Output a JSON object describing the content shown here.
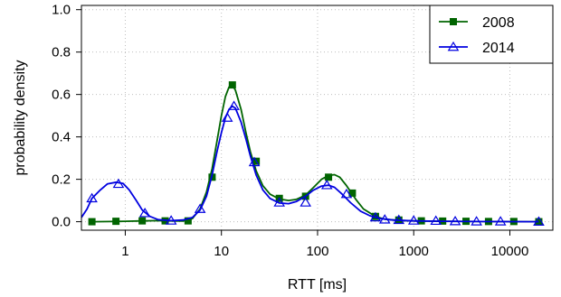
{
  "chart_data": {
    "type": "line",
    "xscale": "log",
    "xlabel": "RTT [ms]",
    "ylabel": "probability density",
    "xlim": [
      0.35,
      28000
    ],
    "ylim": [
      -0.04,
      1.02
    ],
    "grid": true,
    "legend_position": "top-right",
    "x_ticks": [
      1,
      10,
      100,
      1000,
      10000
    ],
    "x_tick_labels": [
      "1",
      "10",
      "100",
      "1000",
      "10000"
    ],
    "y_ticks": [
      0.0,
      0.2,
      0.4,
      0.6,
      0.8,
      1.0
    ],
    "y_tick_labels": [
      "0.0",
      "0.2",
      "0.4",
      "0.6",
      "0.8",
      "1.0"
    ],
    "series": [
      {
        "name": "2008",
        "color": "#006400",
        "marker": "square",
        "curve": [
          [
            0.45,
            0.0
          ],
          [
            0.7,
            0.001
          ],
          [
            1.0,
            0.002
          ],
          [
            1.5,
            0.004
          ],
          [
            2.2,
            0.005
          ],
          [
            3.0,
            0.004
          ],
          [
            4.0,
            0.003
          ],
          [
            5.0,
            0.015
          ],
          [
            6.0,
            0.06
          ],
          [
            7.0,
            0.14
          ],
          [
            8.0,
            0.25
          ],
          [
            9.0,
            0.38
          ],
          [
            10.0,
            0.5
          ],
          [
            11.0,
            0.59
          ],
          [
            12.0,
            0.635
          ],
          [
            13.0,
            0.645
          ],
          [
            14.0,
            0.62
          ],
          [
            16.0,
            0.53
          ],
          [
            18.0,
            0.42
          ],
          [
            20.0,
            0.33
          ],
          [
            23.0,
            0.24
          ],
          [
            27.0,
            0.17
          ],
          [
            32.0,
            0.13
          ],
          [
            40.0,
            0.107
          ],
          [
            50.0,
            0.1
          ],
          [
            60.0,
            0.105
          ],
          [
            75.0,
            0.125
          ],
          [
            90.0,
            0.16
          ],
          [
            110.0,
            0.2
          ],
          [
            130.0,
            0.218
          ],
          [
            150.0,
            0.222
          ],
          [
            170.0,
            0.21
          ],
          [
            200.0,
            0.17
          ],
          [
            250.0,
            0.105
          ],
          [
            300.0,
            0.06
          ],
          [
            400.0,
            0.025
          ],
          [
            500.0,
            0.012
          ],
          [
            700.0,
            0.006
          ],
          [
            1000.0,
            0.004
          ],
          [
            2000.0,
            0.002
          ],
          [
            5000.0,
            0.001
          ],
          [
            20000.0,
            0.0
          ]
        ],
        "markers": [
          [
            0.45,
            0.0
          ],
          [
            0.8,
            0.002
          ],
          [
            1.5,
            0.004
          ],
          [
            2.6,
            0.004
          ],
          [
            4.5,
            0.004
          ],
          [
            8.0,
            0.21
          ],
          [
            13.0,
            0.645
          ],
          [
            23.0,
            0.285
          ],
          [
            40.0,
            0.11
          ],
          [
            75.0,
            0.12
          ],
          [
            130.0,
            0.21
          ],
          [
            230.0,
            0.135
          ],
          [
            400.0,
            0.025
          ],
          [
            700.0,
            0.008
          ],
          [
            1200.0,
            0.004
          ],
          [
            2000.0,
            0.003
          ],
          [
            3500.0,
            0.002
          ],
          [
            6000.0,
            0.001
          ],
          [
            11000.0,
            0.001
          ],
          [
            20000.0,
            0.0
          ]
        ]
      },
      {
        "name": "2014",
        "color": "#0000e0",
        "marker": "triangle-open",
        "curve": [
          [
            0.35,
            0.02
          ],
          [
            0.4,
            0.06
          ],
          [
            0.45,
            0.11
          ],
          [
            0.55,
            0.15
          ],
          [
            0.65,
            0.178
          ],
          [
            0.8,
            0.186
          ],
          [
            0.95,
            0.18
          ],
          [
            1.1,
            0.15
          ],
          [
            1.3,
            0.1
          ],
          [
            1.5,
            0.055
          ],
          [
            1.8,
            0.025
          ],
          [
            2.2,
            0.01
          ],
          [
            3.0,
            0.005
          ],
          [
            4.0,
            0.008
          ],
          [
            5.0,
            0.02
          ],
          [
            6.0,
            0.055
          ],
          [
            7.0,
            0.12
          ],
          [
            8.0,
            0.22
          ],
          [
            9.0,
            0.33
          ],
          [
            10.0,
            0.42
          ],
          [
            11.0,
            0.49
          ],
          [
            12.0,
            0.53
          ],
          [
            13.0,
            0.545
          ],
          [
            14.0,
            0.535
          ],
          [
            16.0,
            0.47
          ],
          [
            18.0,
            0.39
          ],
          [
            20.0,
            0.31
          ],
          [
            23.0,
            0.22
          ],
          [
            27.0,
            0.15
          ],
          [
            32.0,
            0.11
          ],
          [
            40.0,
            0.088
          ],
          [
            50.0,
            0.085
          ],
          [
            60.0,
            0.095
          ],
          [
            75.0,
            0.12
          ],
          [
            90.0,
            0.148
          ],
          [
            110.0,
            0.168
          ],
          [
            130.0,
            0.172
          ],
          [
            150.0,
            0.162
          ],
          [
            180.0,
            0.13
          ],
          [
            220.0,
            0.09
          ],
          [
            280.0,
            0.05
          ],
          [
            350.0,
            0.028
          ],
          [
            450.0,
            0.015
          ],
          [
            600.0,
            0.008
          ],
          [
            1000.0,
            0.004
          ],
          [
            2000.0,
            0.002
          ],
          [
            5000.0,
            0.001
          ],
          [
            20000.0,
            0.0
          ]
        ],
        "markers": [
          [
            0.45,
            0.11
          ],
          [
            0.85,
            0.178
          ],
          [
            1.6,
            0.04
          ],
          [
            3.0,
            0.005
          ],
          [
            6.0,
            0.06
          ],
          [
            11.5,
            0.49
          ],
          [
            13.5,
            0.545
          ],
          [
            22.0,
            0.28
          ],
          [
            40.0,
            0.09
          ],
          [
            75.0,
            0.09
          ],
          [
            125.0,
            0.172
          ],
          [
            200.0,
            0.13
          ],
          [
            400.0,
            0.02
          ],
          [
            500.0,
            0.01
          ],
          [
            700.0,
            0.008
          ],
          [
            1000.0,
            0.005
          ],
          [
            1700.0,
            0.004
          ],
          [
            2700.0,
            0.002
          ],
          [
            4500.0,
            0.001
          ],
          [
            8000.0,
            0.001
          ],
          [
            20000.0,
            0.0
          ]
        ]
      }
    ]
  }
}
